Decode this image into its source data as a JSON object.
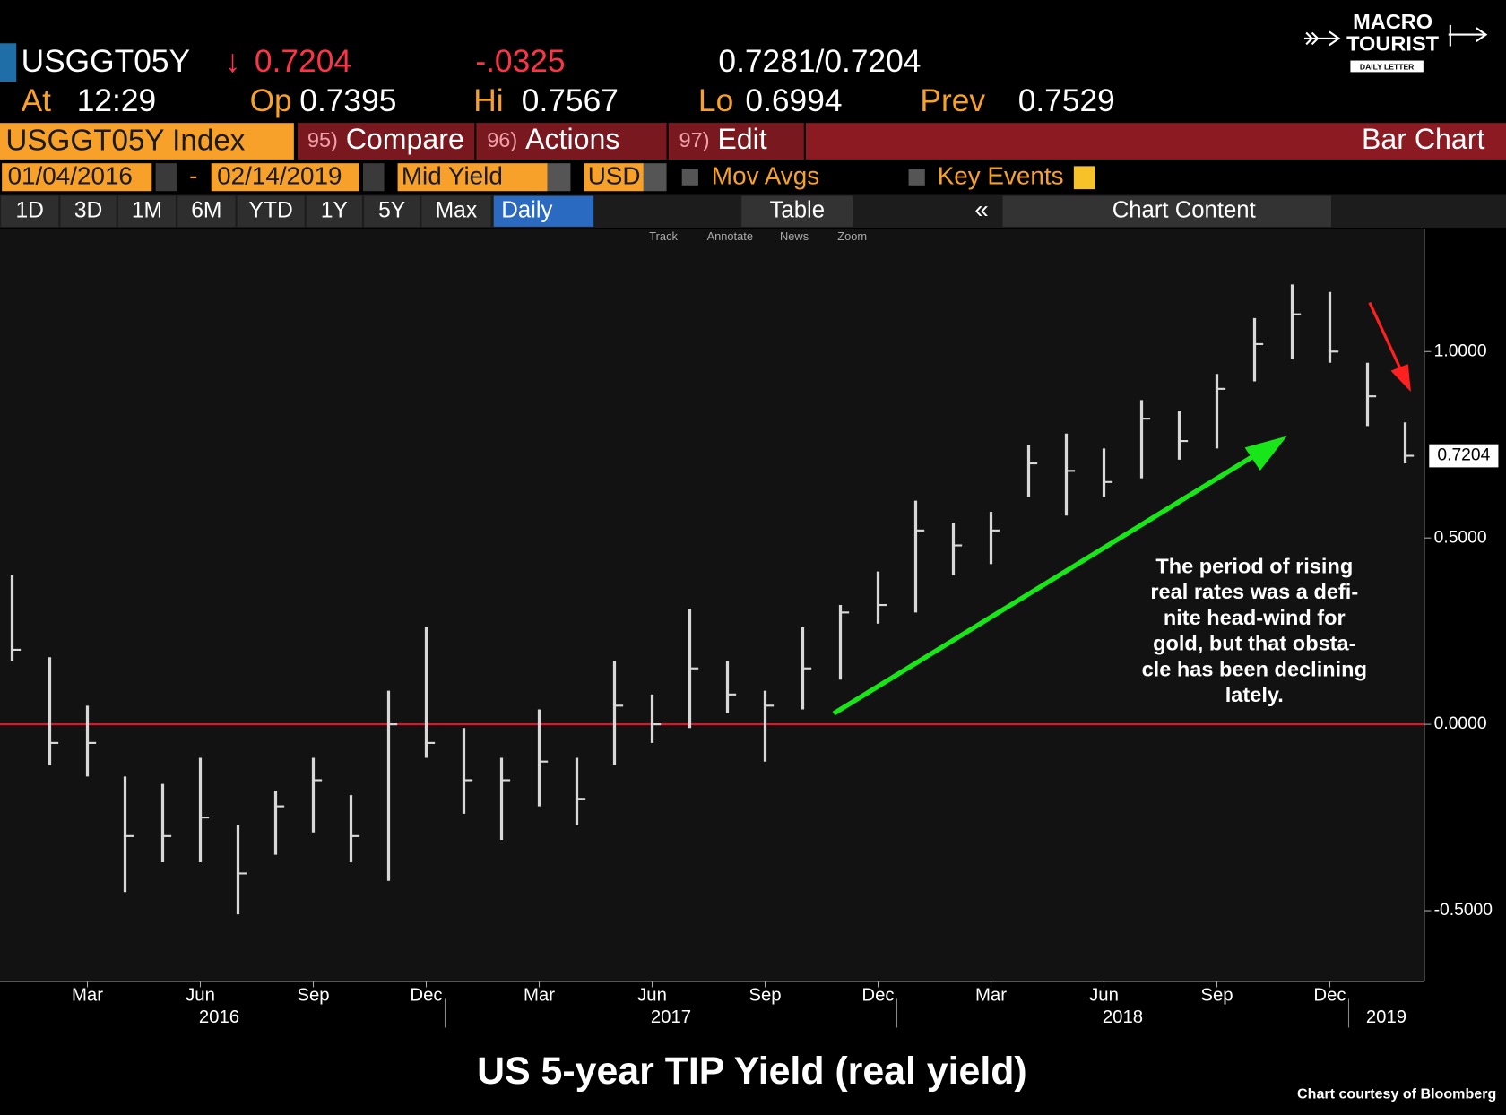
{
  "header": {
    "ticker": "USGGT05Y",
    "direction": "↓",
    "price": "0.7204",
    "change": "-.0325",
    "bid_ask": "0.7281/0.7204",
    "at_label": "At",
    "time": "12:29",
    "op_label": "Op",
    "open": "0.7395",
    "hi_label": "Hi",
    "high": "0.7567",
    "lo_label": "Lo",
    "low": "0.6994",
    "prev_label": "Prev",
    "prev": "0.7529"
  },
  "logo": [
    "MACRO",
    "TOURIST",
    "DAILY LETTER"
  ],
  "toolbar": {
    "security": "USGGT05Y Index",
    "buttons": [
      {
        "num": "95)",
        "label": "Compare"
      },
      {
        "num": "96)",
        "label": "Actions"
      },
      {
        "num": "97)",
        "label": "Edit"
      }
    ],
    "chart_kind": "Bar Chart",
    "start": "01/04/2016",
    "dash": "-",
    "end": "02/14/2019",
    "field": "Mid Yield",
    "currency": "USD",
    "mov_avgs": "Mov Avgs",
    "key_events": "Key Events",
    "periods": [
      "1D",
      "3D",
      "1M",
      "6M",
      "YTD",
      "1Y",
      "5Y",
      "Max"
    ],
    "frequency": "Daily",
    "table": "Table",
    "chart_content": "Chart Content",
    "subtools": [
      "Track",
      "Annotate",
      "News",
      "Zoom"
    ]
  },
  "chart_data": {
    "type": "ohlc",
    "title": "US 5-year TIP Yield (real yield)",
    "credit": "Chart courtesy of Bloomberg",
    "x": [
      "2016-01",
      "2016-02",
      "2016-03",
      "2016-04",
      "2016-05",
      "2016-06",
      "2016-07",
      "2016-08",
      "2016-09",
      "2016-10",
      "2016-11",
      "2016-12",
      "2017-01",
      "2017-02",
      "2017-03",
      "2017-04",
      "2017-05",
      "2017-06",
      "2017-07",
      "2017-08",
      "2017-09",
      "2017-10",
      "2017-11",
      "2017-12",
      "2018-01",
      "2018-02",
      "2018-03",
      "2018-04",
      "2018-05",
      "2018-06",
      "2018-07",
      "2018-08",
      "2018-09",
      "2018-10",
      "2018-11",
      "2018-12",
      "2019-01",
      "2019-02"
    ],
    "high": [
      0.4,
      0.18,
      0.05,
      -0.14,
      -0.16,
      -0.09,
      -0.27,
      -0.18,
      -0.09,
      -0.19,
      0.09,
      0.26,
      -0.01,
      -0.09,
      0.04,
      -0.09,
      0.17,
      0.08,
      0.31,
      0.17,
      0.09,
      0.26,
      0.32,
      0.41,
      0.6,
      0.54,
      0.57,
      0.75,
      0.78,
      0.74,
      0.87,
      0.84,
      0.94,
      1.09,
      1.18,
      1.16,
      0.97,
      0.81
    ],
    "low": [
      0.17,
      -0.11,
      -0.14,
      -0.45,
      -0.37,
      -0.37,
      -0.51,
      -0.35,
      -0.29,
      -0.37,
      -0.42,
      -0.09,
      -0.24,
      -0.31,
      -0.22,
      -0.27,
      -0.11,
      -0.05,
      -0.01,
      0.03,
      -0.1,
      0.04,
      0.12,
      0.27,
      0.3,
      0.4,
      0.43,
      0.61,
      0.56,
      0.61,
      0.66,
      0.71,
      0.74,
      0.92,
      0.98,
      0.97,
      0.8,
      0.7
    ],
    "close": [
      0.2,
      -0.05,
      -0.05,
      -0.3,
      -0.3,
      -0.25,
      -0.4,
      -0.22,
      -0.15,
      -0.3,
      0.0,
      -0.05,
      -0.15,
      -0.15,
      -0.1,
      -0.2,
      0.05,
      0.0,
      0.15,
      0.08,
      0.05,
      0.15,
      0.3,
      0.32,
      0.52,
      0.48,
      0.52,
      0.7,
      0.68,
      0.65,
      0.82,
      0.76,
      0.9,
      1.02,
      1.1,
      1.0,
      0.88,
      0.7204
    ],
    "color": "#d8d8d8",
    "ylim": [
      -0.69,
      1.33
    ],
    "yticks": [
      {
        "value": -0.5,
        "label": "-0.5000"
      },
      {
        "value": 0,
        "label": "0.0000"
      },
      {
        "value": 0.5,
        "label": "0.5000"
      },
      {
        "value": 1,
        "label": "1.0000"
      }
    ],
    "xticks": [
      {
        "value": "2016-03",
        "label": "Mar"
      },
      {
        "value": "2016-06",
        "label": "Jun"
      },
      {
        "value": "2016-09",
        "label": "Sep"
      },
      {
        "value": "2016-12",
        "label": "Dec"
      },
      {
        "value": "2017-03",
        "label": "Mar"
      },
      {
        "value": "2017-06",
        "label": "Jun"
      },
      {
        "value": "2017-09",
        "label": "Sep"
      },
      {
        "value": "2017-12",
        "label": "Dec"
      },
      {
        "value": "2018-03",
        "label": "Mar"
      },
      {
        "value": "2018-06",
        "label": "Jun"
      },
      {
        "value": "2018-09",
        "label": "Sep"
      },
      {
        "value": "2018-12",
        "label": "Dec"
      }
    ],
    "years": [
      2016,
      2017,
      2018,
      2019
    ],
    "reference_line": {
      "value": 0,
      "color": "#e8102a"
    },
    "annotation": [
      "The period of rising",
      "real rates was a defi-",
      "nite head-wind for",
      "gold, but that obsta-",
      "cle has been declining",
      "lately."
    ]
  }
}
